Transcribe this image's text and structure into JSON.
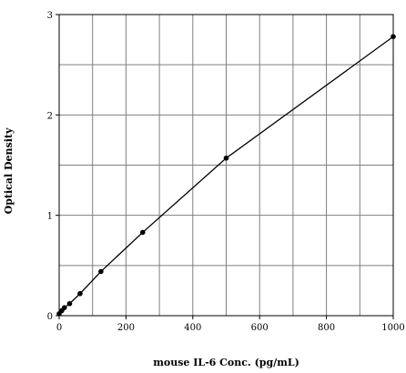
{
  "chart_data": {
    "type": "line",
    "title": "",
    "xlabel": "mouse IL-6 Conc. (pg/mL)",
    "ylabel": "Optical Density",
    "xlim": [
      0,
      1000
    ],
    "ylim": [
      0,
      3
    ],
    "x_ticks": [
      0,
      200,
      400,
      600,
      800,
      1000
    ],
    "y_ticks": [
      0,
      1,
      2,
      3
    ],
    "x_tick_labels": [
      "0",
      "200",
      "400",
      "600",
      "800",
      "1000"
    ],
    "y_tick_labels": [
      "0",
      "1",
      "2",
      "3"
    ],
    "grid": true,
    "grid_x_step": 100,
    "grid_y_step": 0.5,
    "legend": "none",
    "line_color": "#000000",
    "series": [
      {
        "x": [
          0,
          7.8,
          15.6,
          31.3,
          62.5,
          125,
          250,
          500,
          1000
        ],
        "y": [
          0.02,
          0.05,
          0.08,
          0.12,
          0.22,
          0.44,
          0.83,
          1.57,
          2.78
        ]
      }
    ]
  }
}
